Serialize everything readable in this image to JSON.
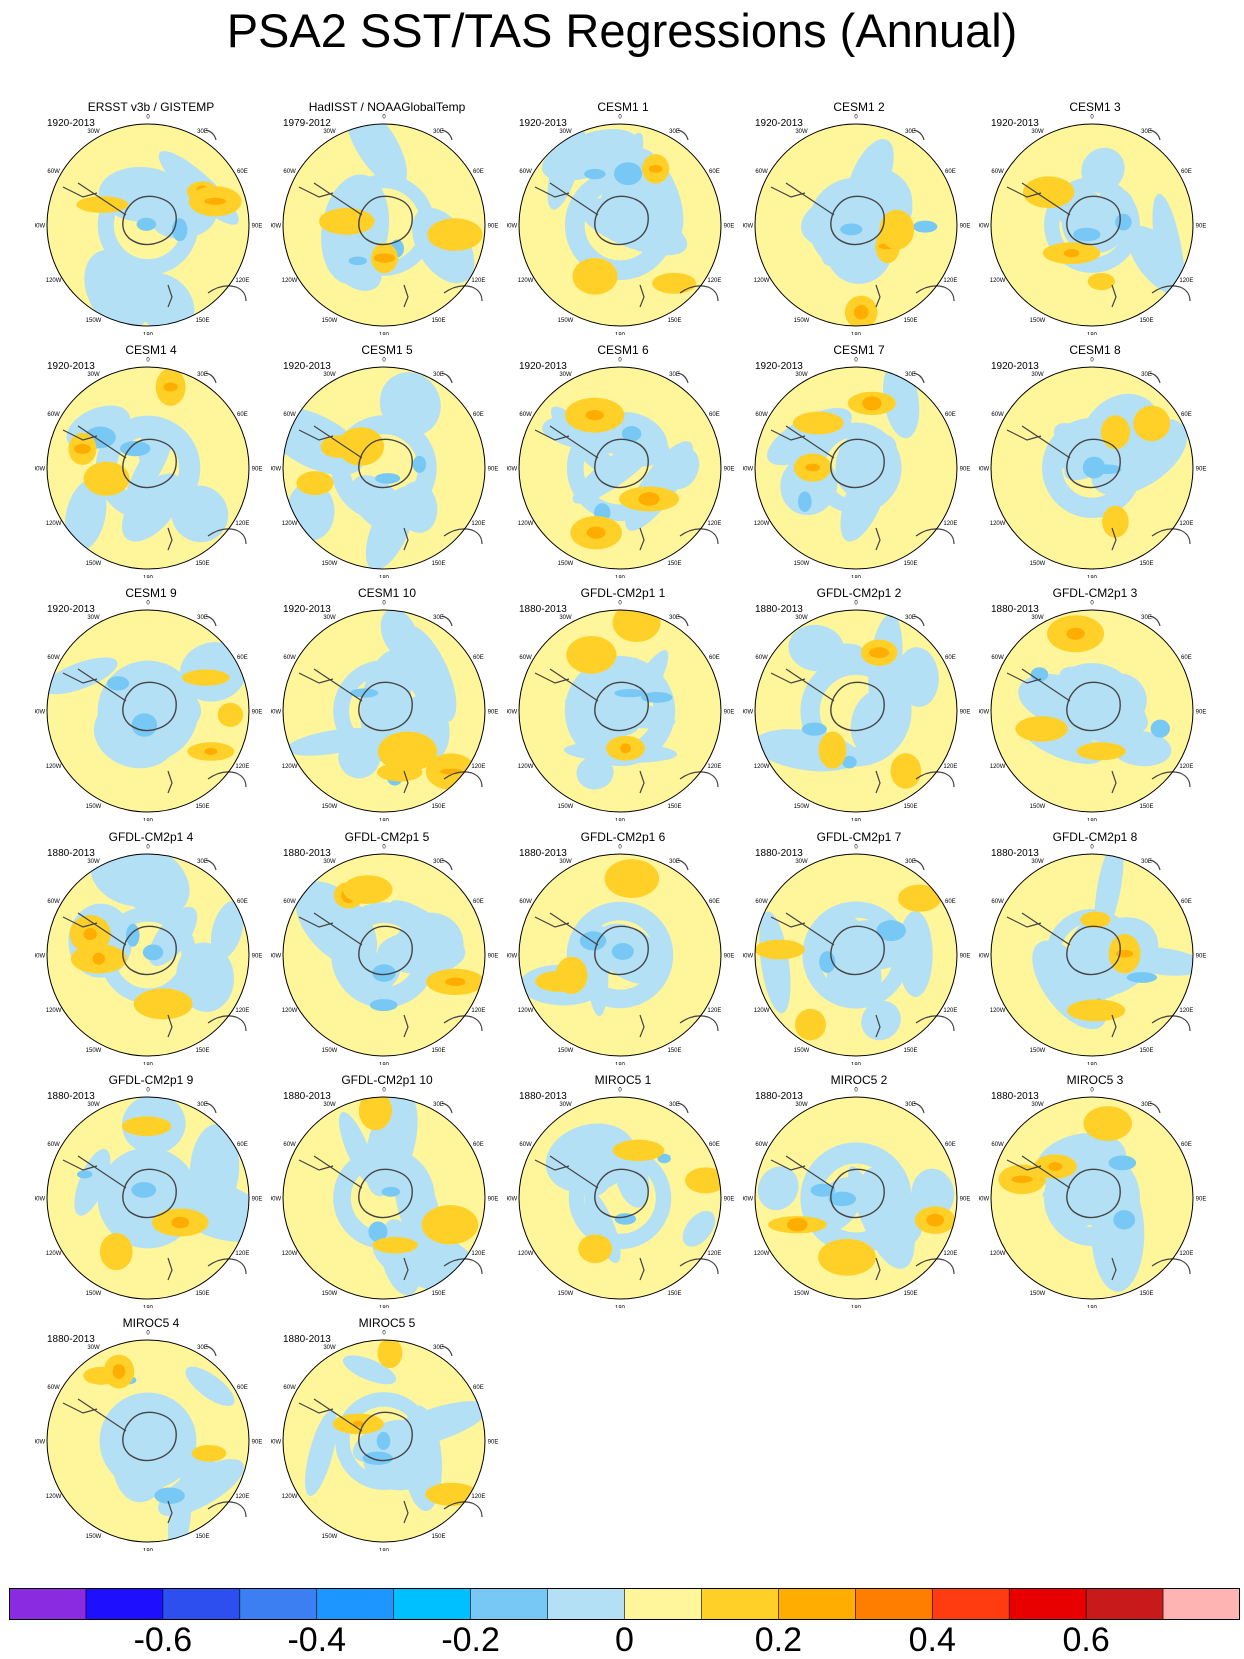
{
  "figure": {
    "title": "PSA2 SST/TAS Regressions (Annual)"
  },
  "map_labels": {
    "lon_top": "0",
    "lon_bottom": "180",
    "lon_30w": "30W",
    "lon_30e": "30E",
    "lon_60w": "60W",
    "lon_60e": "60E",
    "lon_90w": "90W",
    "lon_90e": "90E",
    "lon_120w": "120W",
    "lon_120e": "120E",
    "lon_150w": "150W",
    "lon_150e": "150E"
  },
  "colors": {
    "land_outline": "#444444",
    "missing": "#ffffff"
  },
  "panels": [
    {
      "title": "ERSST v3b / GISTEMP",
      "period": "1920-2013"
    },
    {
      "title": "HadISST / NOAAGlobalTemp",
      "period": "1979-2012"
    },
    {
      "title": "CESM1 1",
      "period": "1920-2013"
    },
    {
      "title": "CESM1 2",
      "period": "1920-2013"
    },
    {
      "title": "CESM1 3",
      "period": "1920-2013"
    },
    {
      "title": "CESM1 4",
      "period": "1920-2013"
    },
    {
      "title": "CESM1 5",
      "period": "1920-2013"
    },
    {
      "title": "CESM1 6",
      "period": "1920-2013"
    },
    {
      "title": "CESM1 7",
      "period": "1920-2013"
    },
    {
      "title": "CESM1 8",
      "period": "1920-2013"
    },
    {
      "title": "CESM1 9",
      "period": "1920-2013"
    },
    {
      "title": "CESM1 10",
      "period": "1920-2013"
    },
    {
      "title": "GFDL-CM2p1 1",
      "period": "1880-2013"
    },
    {
      "title": "GFDL-CM2p1 2",
      "period": "1880-2013"
    },
    {
      "title": "GFDL-CM2p1 3",
      "period": "1880-2013"
    },
    {
      "title": "GFDL-CM2p1 4",
      "period": "1880-2013"
    },
    {
      "title": "GFDL-CM2p1 5",
      "period": "1880-2013"
    },
    {
      "title": "GFDL-CM2p1 6",
      "period": "1880-2013"
    },
    {
      "title": "GFDL-CM2p1 7",
      "period": "1880-2013"
    },
    {
      "title": "GFDL-CM2p1 8",
      "period": "1880-2013"
    },
    {
      "title": "GFDL-CM2p1 9",
      "period": "1880-2013"
    },
    {
      "title": "GFDL-CM2p1 10",
      "period": "1880-2013"
    },
    {
      "title": "MIROC5 1",
      "period": "1880-2013"
    },
    {
      "title": "MIROC5 2",
      "period": "1880-2013"
    },
    {
      "title": "MIROC5 3",
      "period": "1880-2013"
    },
    {
      "title": "MIROC5 4",
      "period": "1880-2013"
    },
    {
      "title": "MIROC5 5",
      "period": "1880-2013"
    }
  ],
  "colorbar": {
    "colors": [
      "#8a2be2",
      "#1e10ff",
      "#2d4ff0",
      "#3b7ff2",
      "#1e96ff",
      "#00c0ff",
      "#78c8f5",
      "#b4e0f5",
      "#fff59a",
      "#ffd028",
      "#ffad00",
      "#ff7e00",
      "#ff3b10",
      "#e80000",
      "#c81a1a",
      "#ffb4b4"
    ],
    "ticks": [
      {
        "label": "-0.6",
        "index": 2
      },
      {
        "label": "-0.4",
        "index": 4
      },
      {
        "label": "-0.2",
        "index": 6
      },
      {
        "label": "0",
        "index": 8
      },
      {
        "label": "0.2",
        "index": 10
      },
      {
        "label": "0.4",
        "index": 12
      },
      {
        "label": "0.6",
        "index": 14
      }
    ]
  }
}
